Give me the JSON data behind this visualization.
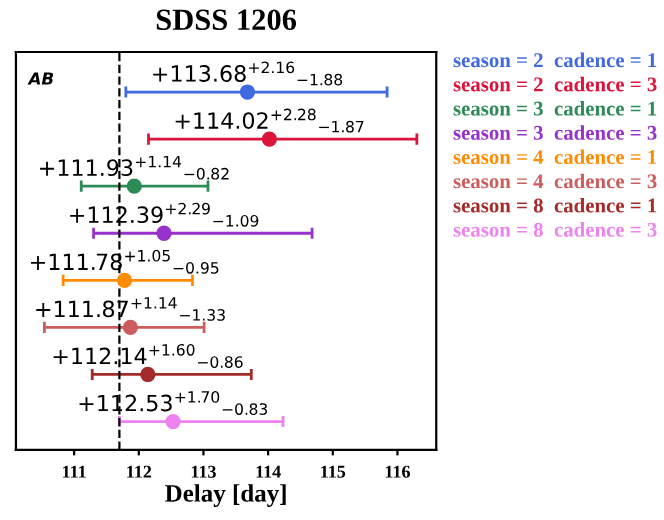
{
  "chart_data": {
    "type": "scatter",
    "orientation": "horizontal",
    "title": "SDSS 1206",
    "xlabel": "Delay [day]",
    "annotations": [
      "AB"
    ],
    "categories": [
      null,
      null,
      null,
      null,
      null,
      null,
      null,
      null
    ],
    "xlim": [
      110.1,
      116.6
    ],
    "xticks": [
      111,
      112,
      113,
      114,
      115,
      116
    ],
    "tick_labels": "x",
    "legend": "right",
    "marker": "circle",
    "grid": false,
    "ref_lines": [
      {
        "axis": "x",
        "value": 111.7,
        "label": null,
        "color": "#000000",
        "line_style": "dashed"
      }
    ],
    "series": [
      {
        "name": "season = 2  cadence = 1",
        "color": "#4169e1",
        "values": [
          113.68,
          null,
          null,
          null,
          null,
          null,
          null,
          null
        ],
        "errors": [
          [
            111.8,
            115.84
          ],
          null,
          null,
          null,
          null,
          null,
          null,
          null
        ],
        "value_labels": [
          "+113.68$^{+2.16}$$_{−1.88}$",
          null,
          null,
          null,
          null,
          null,
          null,
          null
        ]
      },
      {
        "name": "season = 2  cadence = 3",
        "color": "#dc143c",
        "values": [
          null,
          114.02,
          null,
          null,
          null,
          null,
          null,
          null
        ],
        "errors": [
          null,
          [
            112.15,
            116.3
          ],
          null,
          null,
          null,
          null,
          null,
          null
        ],
        "value_labels": [
          null,
          "+114.02$^{+2.28}$$_{−1.87}$",
          null,
          null,
          null,
          null,
          null,
          null
        ]
      },
      {
        "name": "season = 3  cadence = 1",
        "color": "#2e8b57",
        "values": [
          null,
          null,
          111.93,
          null,
          null,
          null,
          null,
          null
        ],
        "errors": [
          null,
          null,
          [
            111.11,
            113.07
          ],
          null,
          null,
          null,
          null,
          null
        ],
        "value_labels": [
          null,
          null,
          "+111.93$^{+1.14}$$_{−0.82}$",
          null,
          null,
          null,
          null,
          null
        ]
      },
      {
        "name": "season = 3  cadence = 3",
        "color": "#9932cc",
        "values": [
          null,
          null,
          null,
          112.39,
          null,
          null,
          null,
          null
        ],
        "errors": [
          null,
          null,
          null,
          [
            111.3,
            114.68
          ],
          null,
          null,
          null,
          null
        ],
        "value_labels": [
          null,
          null,
          null,
          "+112.39$^{+2.29}$$_{−1.09}$",
          null,
          null,
          null,
          null
        ]
      },
      {
        "name": "season = 4  cadence = 1",
        "color": "#ff8c00",
        "values": [
          null,
          null,
          null,
          null,
          111.78,
          null,
          null,
          null
        ],
        "errors": [
          null,
          null,
          null,
          null,
          [
            110.83,
            112.83
          ],
          null,
          null,
          null
        ],
        "value_labels": [
          null,
          null,
          null,
          null,
          "+111.78$^{+1.05}$$_{−0.95}$",
          null,
          null,
          null
        ]
      },
      {
        "name": "season = 4  cadence = 3",
        "color": "#cd5c5c",
        "values": [
          null,
          null,
          null,
          null,
          null,
          111.87,
          null,
          null
        ],
        "errors": [
          null,
          null,
          null,
          null,
          null,
          [
            110.54,
            113.01
          ],
          null,
          null
        ],
        "value_labels": [
          null,
          null,
          null,
          null,
          null,
          "+111.87$^{+1.14}$$_{−1.33}$",
          null,
          null
        ]
      },
      {
        "name": "season = 8  cadence = 1",
        "color": "#a52a2a",
        "values": [
          null,
          null,
          null,
          null,
          null,
          null,
          112.14,
          null
        ],
        "errors": [
          null,
          null,
          null,
          null,
          null,
          null,
          [
            111.28,
            113.74
          ],
          null
        ],
        "value_labels": [
          null,
          null,
          null,
          null,
          null,
          null,
          "+112.14$^{+1.60}$$_{−0.86}$",
          null
        ]
      },
      {
        "name": "season = 8  cadence = 3",
        "color": "#ee82ee",
        "values": [
          null,
          null,
          null,
          null,
          null,
          null,
          null,
          112.53
        ],
        "errors": [
          null,
          null,
          null,
          null,
          null,
          null,
          null,
          [
            111.7,
            114.23
          ]
        ],
        "value_labels": [
          null,
          null,
          null,
          null,
          null,
          null,
          null,
          "+112.53$^{+1.70}$$_{−0.83}$"
        ]
      }
    ]
  }
}
